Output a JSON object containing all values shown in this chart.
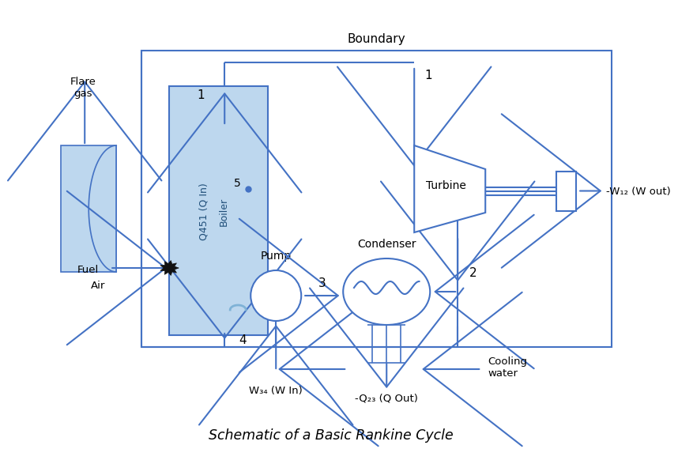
{
  "title": "Schematic of a Basic Rankine Cycle",
  "lc": "#4472C4",
  "boiler_fill": "#BDD7EE",
  "flue_fill": "#BDD7EE",
  "bg": "#FFFFFF",
  "labels": {
    "flare_gas": "Flare\ngas",
    "fuel": "Fuel",
    "air": "Air",
    "boiler_text1": "Q451 (Q In)",
    "boiler_text2": "Boiler",
    "turbine": "Turbine",
    "condenser": "Condenser",
    "pump": "Pump",
    "boundary": "Boundary",
    "w_out": "-W₁₂ (W out)",
    "w_in": "W₃₄ (W In)",
    "q_out": "-Q₂₃ (Q Out)",
    "cooling": "Cooling\nwater",
    "n1l": "1",
    "n1r": "1",
    "n2": "2",
    "n3": "3",
    "n4": "4",
    "n5": "5"
  }
}
